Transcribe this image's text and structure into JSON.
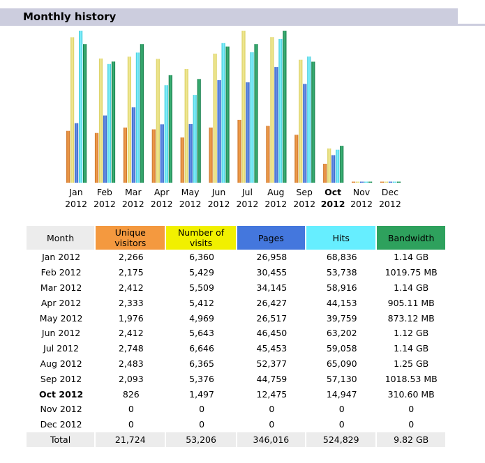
{
  "section": {
    "title": "Monthly history"
  },
  "chart_data": {
    "type": "bar",
    "title": "Monthly history",
    "categories": [
      "Jan 2012",
      "Feb 2012",
      "Mar 2012",
      "Apr 2012",
      "May 2012",
      "Jun 2012",
      "Jul 2012",
      "Aug 2012",
      "Sep 2012",
      "Oct 2012",
      "Nov 2012",
      "Dec 2012"
    ],
    "month_labels": [
      {
        "m": "Jan",
        "y": "2012"
      },
      {
        "m": "Feb",
        "y": "2012"
      },
      {
        "m": "Mar",
        "y": "2012"
      },
      {
        "m": "Apr",
        "y": "2012"
      },
      {
        "m": "May",
        "y": "2012"
      },
      {
        "m": "Jun",
        "y": "2012"
      },
      {
        "m": "Jul",
        "y": "2012"
      },
      {
        "m": "Aug",
        "y": "2012"
      },
      {
        "m": "Sep",
        "y": "2012"
      },
      {
        "m": "Oct",
        "y": "2012"
      },
      {
        "m": "Nov",
        "y": "2012"
      },
      {
        "m": "Dec",
        "y": "2012"
      }
    ],
    "current_month_index": 9,
    "series": [
      {
        "key": "unique",
        "values": [
          2266,
          2175,
          2412,
          2333,
          1976,
          2412,
          2748,
          2483,
          2093,
          826,
          0,
          0
        ],
        "color": "#f4993f"
      },
      {
        "key": "visits",
        "values": [
          6360,
          5429,
          5509,
          5412,
          4969,
          5643,
          6646,
          6365,
          5376,
          1497,
          0,
          0
        ],
        "color": "#e9e07a"
      },
      {
        "key": "pages",
        "values": [
          26958,
          30455,
          34145,
          26427,
          26517,
          46450,
          45453,
          52377,
          44759,
          12475,
          0,
          0
        ],
        "color": "#4477dd"
      },
      {
        "key": "hits",
        "values": [
          68836,
          53738,
          58916,
          44153,
          39759,
          63202,
          59058,
          65090,
          57130,
          14947,
          0,
          0
        ],
        "color": "#66eeff"
      },
      {
        "key": "bandwidth_mb",
        "values": [
          1167.36,
          1019.75,
          1167.36,
          905.11,
          873.12,
          1146.88,
          1167.36,
          1280.0,
          1018.53,
          310.6,
          0,
          0
        ],
        "color": "#2ea15d"
      }
    ]
  },
  "table": {
    "headers": {
      "month": "Month",
      "unique_l1": "Unique",
      "unique_l2": "visitors",
      "visits_l1": "Number of",
      "visits_l2": "visits",
      "pages": "Pages",
      "hits": "Hits",
      "bandwidth": "Bandwidth"
    },
    "rows": [
      {
        "month": "Jan 2012",
        "unique": "2,266",
        "visits": "6,360",
        "pages": "26,958",
        "hits": "68,836",
        "bandwidth": "1.14 GB"
      },
      {
        "month": "Feb 2012",
        "unique": "2,175",
        "visits": "5,429",
        "pages": "30,455",
        "hits": "53,738",
        "bandwidth": "1019.75 MB"
      },
      {
        "month": "Mar 2012",
        "unique": "2,412",
        "visits": "5,509",
        "pages": "34,145",
        "hits": "58,916",
        "bandwidth": "1.14 GB"
      },
      {
        "month": "Apr 2012",
        "unique": "2,333",
        "visits": "5,412",
        "pages": "26,427",
        "hits": "44,153",
        "bandwidth": "905.11 MB"
      },
      {
        "month": "May 2012",
        "unique": "1,976",
        "visits": "4,969",
        "pages": "26,517",
        "hits": "39,759",
        "bandwidth": "873.12 MB"
      },
      {
        "month": "Jun 2012",
        "unique": "2,412",
        "visits": "5,643",
        "pages": "46,450",
        "hits": "63,202",
        "bandwidth": "1.12 GB"
      },
      {
        "month": "Jul 2012",
        "unique": "2,748",
        "visits": "6,646",
        "pages": "45,453",
        "hits": "59,058",
        "bandwidth": "1.14 GB"
      },
      {
        "month": "Aug 2012",
        "unique": "2,483",
        "visits": "6,365",
        "pages": "52,377",
        "hits": "65,090",
        "bandwidth": "1.25 GB"
      },
      {
        "month": "Sep 2012",
        "unique": "2,093",
        "visits": "5,376",
        "pages": "44,759",
        "hits": "57,130",
        "bandwidth": "1018.53 MB"
      },
      {
        "month": "Oct 2012",
        "unique": "826",
        "visits": "1,497",
        "pages": "12,475",
        "hits": "14,947",
        "bandwidth": "310.60 MB"
      },
      {
        "month": "Nov 2012",
        "unique": "0",
        "visits": "0",
        "pages": "0",
        "hits": "0",
        "bandwidth": "0"
      },
      {
        "month": "Dec 2012",
        "unique": "0",
        "visits": "0",
        "pages": "0",
        "hits": "0",
        "bandwidth": "0"
      }
    ],
    "total": {
      "month": "Total",
      "unique": "21,724",
      "visits": "53,206",
      "pages": "346,016",
      "hits": "524,829",
      "bandwidth": "9.82 GB"
    }
  }
}
